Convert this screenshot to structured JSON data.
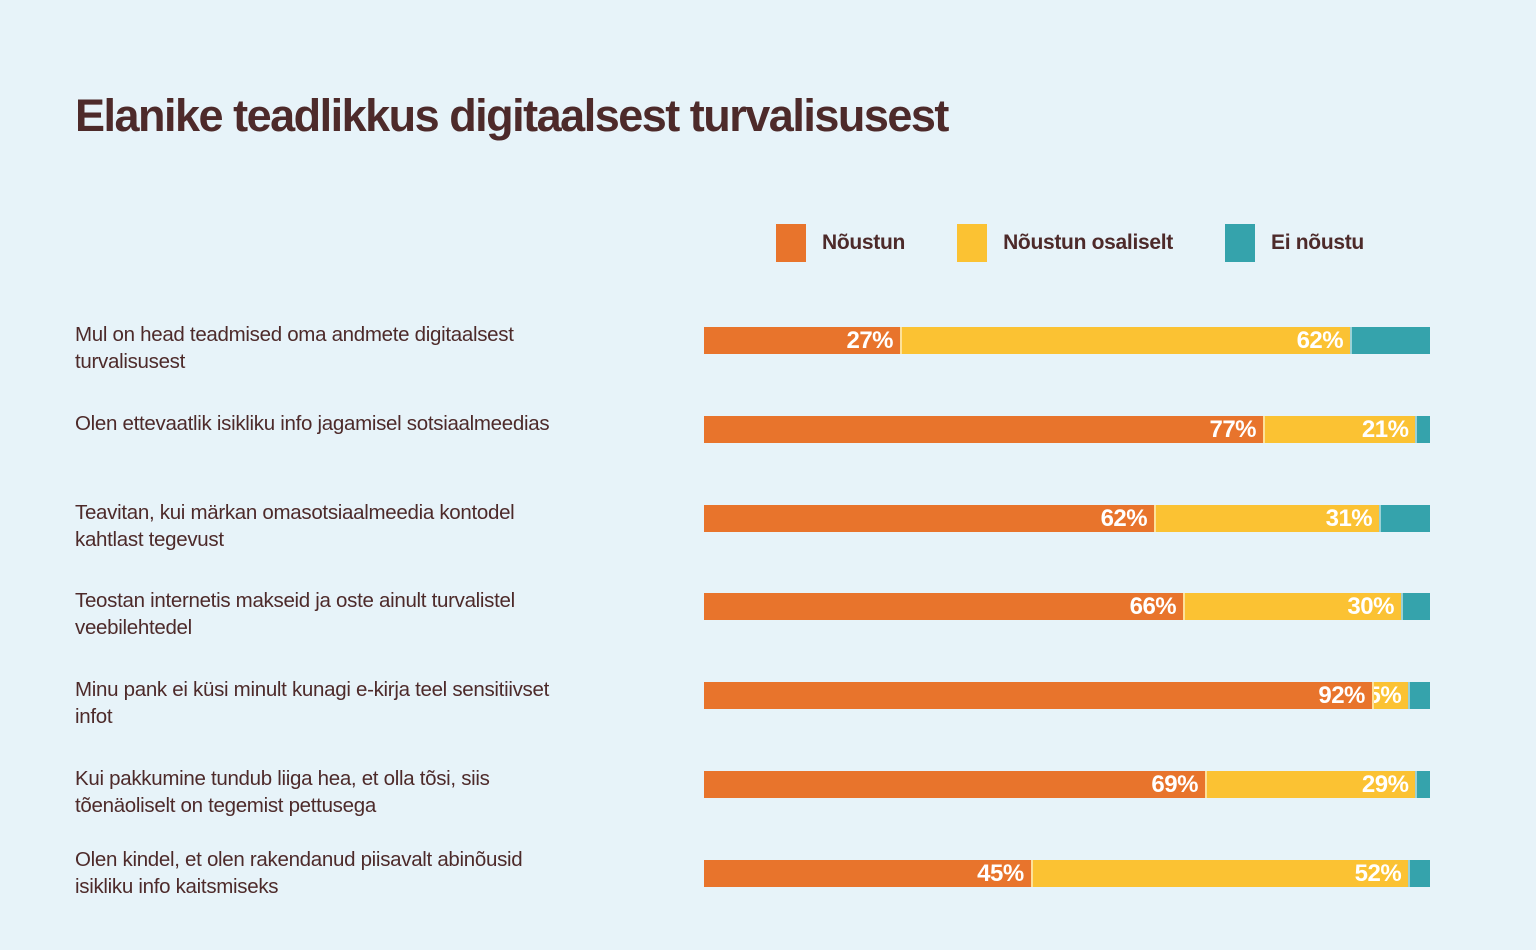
{
  "page": {
    "background_color": "#E7F3F9",
    "title_color": "#4D2A2A"
  },
  "title": "Elanike teadlikkus digitaalsest turvalisusest",
  "legend": {
    "items": [
      {
        "label": "Nõustun",
        "color": "#E8742C"
      },
      {
        "label": "Nõustun osaliselt",
        "color": "#FBC233"
      },
      {
        "label": "Ei nõustu",
        "color": "#35A3AC"
      }
    ]
  },
  "chart_data": {
    "type": "bar",
    "orientation": "horizontal-stacked",
    "unit": "%",
    "xlim": [
      0,
      100
    ],
    "title": "Elanike teadlikkus digitaalsest turvalisusest",
    "legend_position": "top-right",
    "series_names": [
      "Nõustun",
      "Nõustun osaliselt",
      "Ei nõustu"
    ],
    "colors": {
      "agree": "#E8742C",
      "partial": "#FBC233",
      "disagree": "#35A3AC"
    },
    "categories": [
      "Mul on head teadmised oma andmete digitaalsest turvalisusest",
      "Olen ettevaatlik isikliku info jagamisel sotsiaalmeedias",
      "Teavitan, kui märkan omasotsiaalmeedia kontodel kahtlast tegevust",
      "Teostan internetis makseid ja oste ainult turvalistel veebilehtedel",
      "Minu pank ei küsi minult kunagi e-kirja teel sensitiivset infot",
      "Kui pakkumine tundub liiga hea, et olla tõsi, siis tõenäoliselt on tegemist pettusega",
      "Olen kindel, et olen rakendanud piisavalt abinõusid isikliku info kaitsmiseks"
    ],
    "series": [
      {
        "name": "Nõustun",
        "values": [
          27,
          77,
          62,
          66,
          92,
          69,
          45
        ]
      },
      {
        "name": "Nõustun osaliselt",
        "values": [
          62,
          21,
          31,
          30,
          5,
          29,
          52
        ]
      },
      {
        "name": "Ei nõustu",
        "values": [
          11,
          2,
          7,
          4,
          3,
          2,
          3
        ]
      }
    ],
    "rows": [
      {
        "label": "Mul on head teadmised oma andmete digitaalsest\nturvalisusest",
        "segments": [
          {
            "name": "Nõustun",
            "value": 27,
            "label": "27%"
          },
          {
            "name": "Nõustun osaliselt",
            "value": 62,
            "label": "62%"
          },
          {
            "name": "Ei nõustu",
            "value": 11,
            "label": ""
          }
        ]
      },
      {
        "label": "Olen ettevaatlik isikliku info jagamisel sotsiaalmeedias",
        "segments": [
          {
            "name": "Nõustun",
            "value": 77,
            "label": "77%"
          },
          {
            "name": "Nõustun osaliselt",
            "value": 21,
            "label": "21%"
          },
          {
            "name": "Ei nõustu",
            "value": 2,
            "label": ""
          }
        ]
      },
      {
        "label": "Teavitan, kui märkan omasotsiaalmeedia kontodel\nkahtlast tegevust",
        "segments": [
          {
            "name": "Nõustun",
            "value": 62,
            "label": "62%"
          },
          {
            "name": "Nõustun osaliselt",
            "value": 31,
            "label": "31%"
          },
          {
            "name": "Ei nõustu",
            "value": 7,
            "label": ""
          }
        ]
      },
      {
        "label": "Teostan internetis makseid ja oste ainult turvalistel\nveebilehtedel",
        "segments": [
          {
            "name": "Nõustun",
            "value": 66,
            "label": "66%"
          },
          {
            "name": "Nõustun osaliselt",
            "value": 30,
            "label": "30%"
          },
          {
            "name": "Ei nõustu",
            "value": 4,
            "label": ""
          }
        ]
      },
      {
        "label": "Minu pank ei küsi minult kunagi e-kirja teel sensitiivset\ninfot",
        "segments": [
          {
            "name": "Nõustun",
            "value": 92,
            "label": "92%"
          },
          {
            "name": "Nõustun osaliselt",
            "value": 5,
            "label": "5%"
          },
          {
            "name": "Ei nõustu",
            "value": 3,
            "label": ""
          }
        ]
      },
      {
        "label": "Kui pakkumine tundub liiga hea, et olla tõsi, siis\ntõenäoliselt on tegemist pettusega",
        "segments": [
          {
            "name": "Nõustun",
            "value": 69,
            "label": "69%"
          },
          {
            "name": "Nõustun osaliselt",
            "value": 29,
            "label": "29%"
          },
          {
            "name": "Ei nõustu",
            "value": 2,
            "label": ""
          }
        ]
      },
      {
        "label": "Olen kindel, et olen rakendanud piisavalt abinõusid\nisikliku info kaitsmiseks",
        "segments": [
          {
            "name": "Nõustun",
            "value": 45,
            "label": "45%"
          },
          {
            "name": "Nõustun osaliselt",
            "value": 52,
            "label": "52%"
          },
          {
            "name": "Ei nõustu",
            "value": 3,
            "label": ""
          }
        ]
      }
    ]
  }
}
